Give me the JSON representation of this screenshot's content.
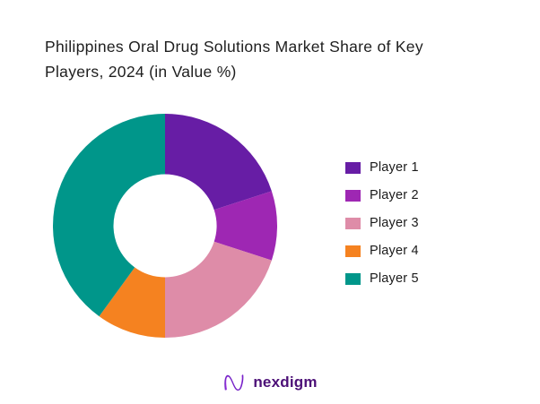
{
  "title": {
    "line1": "Philippines Oral Drug Solutions Market Share of Key",
    "line2": "Players, 2024 (in Value %)"
  },
  "logo": {
    "text": "nexdigm"
  },
  "colors": {
    "background": "#ffffff",
    "title_text": "#1e1e1e",
    "legend_text": "#1a1a1a",
    "logo_text": "#4c1077",
    "logo_icon_light": "#a73ce6",
    "logo_icon_dark": "#6d1fc2"
  },
  "chart_data": {
    "type": "pie",
    "subtype": "donut",
    "title": "Philippines Oral Drug Solutions Market Share of Key Players, 2024 (in Value %)",
    "categories": [
      "Player 1",
      "Player 2",
      "Player 3",
      "Player 4",
      "Player 5"
    ],
    "values": [
      20,
      10,
      20,
      10,
      40
    ],
    "unit": "percent",
    "colors": [
      "#671da5",
      "#9e27b3",
      "#de8ca8",
      "#f58220",
      "#00968a"
    ],
    "start_angle_deg": 0,
    "direction": "clockwise",
    "inner_radius_ratio": 0.46,
    "legend_position": "right",
    "data_labels": false
  }
}
